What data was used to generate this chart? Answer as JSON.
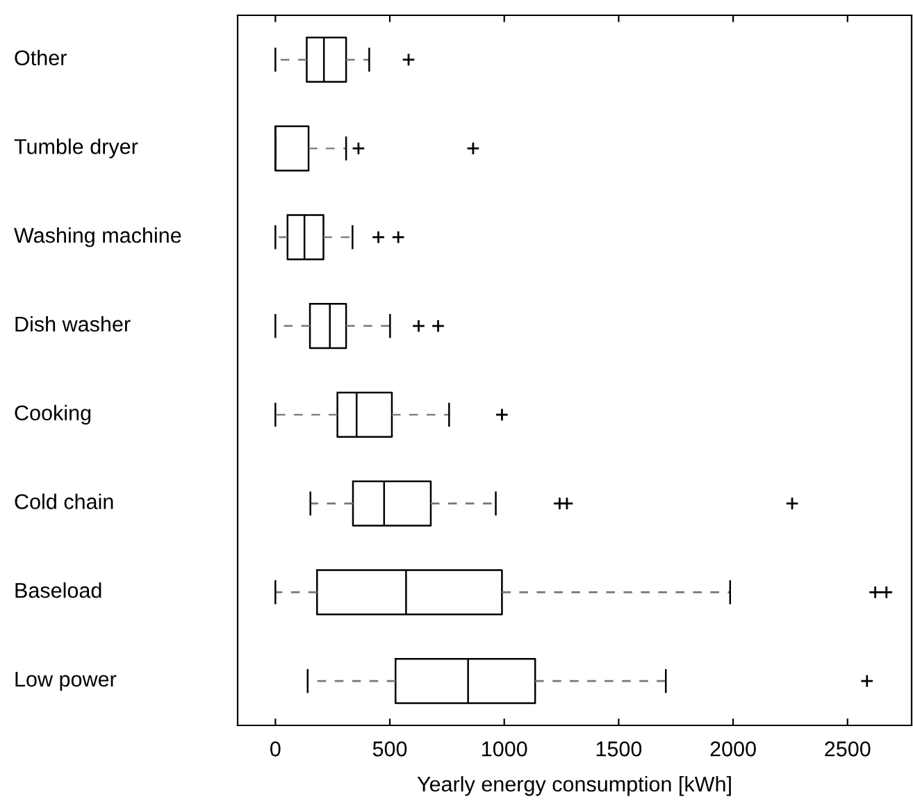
{
  "chart_data": {
    "type": "box",
    "orientation": "horizontal",
    "xlabel": "Yearly energy consumption [kWh]",
    "categories": [
      "Other",
      "Tumble dryer",
      "Washing machine",
      "Dish washer",
      "Cooking",
      "Cold chain",
      "Baseload",
      "Low power"
    ],
    "boxes": [
      {
        "low": 0,
        "q1": 137,
        "median": 212,
        "q3": 309,
        "high": 410,
        "outliers": [
          582
        ]
      },
      {
        "low": 0,
        "q1": 0,
        "median": 0,
        "q3": 145,
        "high": 309,
        "outliers": [
          363,
          864
        ]
      },
      {
        "low": 0,
        "q1": 53,
        "median": 127,
        "q3": 210,
        "high": 337,
        "outliers": [
          450,
          537
        ]
      },
      {
        "low": 0,
        "q1": 151,
        "median": 238,
        "q3": 309,
        "high": 501,
        "outliers": [
          626,
          711
        ]
      },
      {
        "low": 0,
        "q1": 271,
        "median": 355,
        "q3": 509,
        "high": 759,
        "outliers": [
          990
        ]
      },
      {
        "low": 153,
        "q1": 339,
        "median": 475,
        "q3": 679,
        "high": 963,
        "outliers": [
          1242,
          1274,
          2258
        ]
      },
      {
        "low": 0,
        "q1": 182,
        "median": 571,
        "q3": 990,
        "high": 1987,
        "outliers": [
          2621,
          2670
        ]
      },
      {
        "low": 141,
        "q1": 525,
        "median": 842,
        "q3": 1135,
        "high": 1706,
        "outliers": [
          2585
        ]
      }
    ],
    "color": "#000000",
    "marker": "cross",
    "line_style": "dashed",
    "xlim": [
      -165,
      2780
    ],
    "xticks": [
      0,
      500,
      1000,
      1500,
      2000,
      2500
    ],
    "grid": false,
    "legend": false
  }
}
